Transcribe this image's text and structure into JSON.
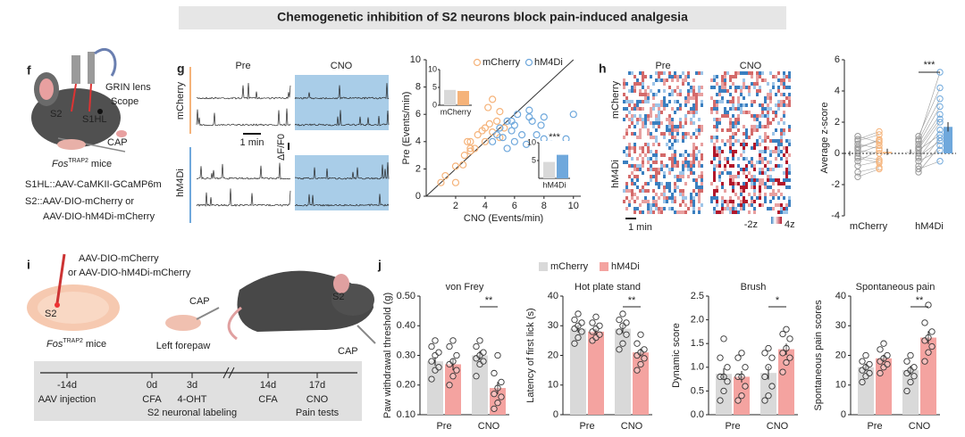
{
  "title": "Chemogenetic inhibition of S2 neurons block pain-induced analgesia",
  "panel_labels": [
    "f",
    "g",
    "h",
    "i",
    "j"
  ],
  "panel_f": {
    "grin_lens": "GRIN lens",
    "scope": "Scope",
    "s2": "S2",
    "s1hl": "S1HL",
    "cap": "CAP",
    "mice": {
      "gene": "Fos",
      "superscript": "TRAP2",
      "suffix": "mice"
    },
    "lines": [
      "S1HL::AAV-CaMKII-GCaMP6m",
      "S2::AAV-DIO-mCherry or",
      "AAV-DIO-hM4Di-mCherry"
    ]
  },
  "panel_g_traces": {
    "conditions": [
      "Pre",
      "CNO"
    ],
    "groups": [
      "mCherry",
      "hM4Di"
    ],
    "time_scale": "1 min",
    "amplitude_scale": "ΔF/F0"
  },
  "panel_h_heatmap": {
    "conditions": [
      "Pre",
      "CNO"
    ],
    "groups": [
      "mCherry",
      "hM4Di"
    ],
    "time_scale": "1 min",
    "color_scale": [
      "-2z",
      "4z"
    ]
  },
  "panel_i": {
    "virus": [
      "AAV-DIO-mCherry",
      "or AAV-DIO-hM4Di-mCherry"
    ],
    "s2": "S2",
    "cap": "CAP",
    "forepaw": "Left forepaw",
    "mice": {
      "gene": "Fos",
      "superscript": "TRAP2",
      "suffix": "mice"
    },
    "timeline": [
      {
        "day": "-14d",
        "events": [
          "AAV injection"
        ]
      },
      {
        "day": "0d",
        "events": [
          "CFA"
        ]
      },
      {
        "day": "3d",
        "events": [
          "4-OHT"
        ]
      },
      {
        "day": "14d",
        "events": [
          "CFA"
        ]
      },
      {
        "day": "17d",
        "events": [
          "CNO",
          "Pain tests"
        ]
      }
    ],
    "labeling_note": "S2 neuronal labeling"
  },
  "chart_data": [
    {
      "type": "scatter",
      "xlabel": "CNO (Events/min)",
      "ylabel": "Pre (Events/min)",
      "xlim": [
        0,
        10.5
      ],
      "ylim": [
        0,
        10
      ],
      "xticks": [
        2,
        4,
        6,
        8,
        10
      ],
      "yticks": [
        0,
        2,
        4,
        6,
        8,
        10
      ],
      "identity_line": true,
      "series": [
        {
          "name": "mCherry",
          "color": "#f5b37a",
          "x": [
            1,
            1.3,
            2,
            2,
            2.5,
            2.6,
            2.8,
            3,
            3,
            3.3,
            3.5,
            3.8,
            4,
            4,
            4.2,
            4.3,
            4.5,
            4.5,
            4.8,
            5,
            5,
            5.3,
            3
          ],
          "y": [
            1,
            1.5,
            2.2,
            1,
            2.3,
            3,
            4,
            3.3,
            4,
            3.5,
            4.5,
            4.8,
            4,
            5,
            6.5,
            5.3,
            4.7,
            7.1,
            5.5,
            4.3,
            6.2,
            5,
            3.5
          ]
        },
        {
          "name": "hM4Di",
          "color": "#6fa8dc",
          "x": [
            4.5,
            4.8,
            5,
            5.2,
            5.5,
            5.5,
            5.8,
            5.8,
            6,
            6,
            6.2,
            6.5,
            6.8,
            7,
            7,
            7.2,
            7.5,
            7.8,
            8,
            8,
            8.5,
            9.5,
            10
          ],
          "y": [
            4,
            4.5,
            5,
            4.3,
            5.5,
            3.5,
            4.8,
            5.5,
            4,
            5.2,
            6,
            4.5,
            3.8,
            5.8,
            6.3,
            5.5,
            4.5,
            5.2,
            4.2,
            5.8,
            3.8,
            4.2,
            6
          ]
        }
      ]
    },
    {
      "type": "inset-bar",
      "label": "mCherry",
      "ylim": [
        0,
        10
      ],
      "yticks": [
        0,
        5,
        10
      ],
      "values": [
        4.3,
        4.0
      ],
      "colors": [
        "#d9d9d9",
        "#f5b37a"
      ]
    },
    {
      "type": "inset-bar",
      "label": "hM4Di",
      "ylim": [
        0,
        10
      ],
      "yticks": [
        5,
        10
      ],
      "values": [
        4.6,
        6.6
      ],
      "colors": [
        "#d9d9d9",
        "#6fa8dc"
      ],
      "significance": "***"
    },
    {
      "type": "paired-bar",
      "ylabel": "Average z-score",
      "categories": [
        "mCherry",
        "hM4Di"
      ],
      "ylim": [
        -4,
        6
      ],
      "yticks": [
        -4,
        -2,
        0,
        2,
        4,
        6
      ],
      "pre_color": "#d9d9d9",
      "post_colors": [
        "#f5b37a",
        "#6fa8dc"
      ],
      "values": [
        [
          0.0,
          0.1
        ],
        [
          0.1,
          1.7
        ]
      ],
      "errors": [
        [
          0.15,
          0.2
        ],
        [
          0.15,
          0.3
        ]
      ],
      "points": [
        [
          [
            -1.2,
            -0.8,
            -0.5,
            -0.3,
            0,
            0.2,
            0.4,
            0.6,
            0.8,
            1.1,
            -0.2,
            0.3,
            -1.5,
            0.9
          ],
          [
            -0.9,
            -0.5,
            0.2,
            -0.6,
            0.5,
            0,
            0.8,
            0.3,
            1.2,
            0.7,
            -0.4,
            0.9,
            -1,
            1.4
          ]
        ],
        [
          [
            -1.2,
            -0.8,
            -0.5,
            -0.3,
            0,
            0.2,
            0.4,
            0.6,
            0.8,
            1.1,
            -0.2,
            0.3,
            -1,
            0.9
          ],
          [
            0.5,
            1,
            0.2,
            1.5,
            2,
            1.2,
            2.5,
            3,
            3.5,
            4.2,
            0.8,
            2.2,
            -0.5,
            5.2
          ]
        ]
      ],
      "significance": "***"
    },
    {
      "type": "grouped-bar-panels",
      "categories": [
        "Pre",
        "CNO"
      ],
      "series": [
        {
          "name": "mCherry",
          "color": "#d9d9d9"
        },
        {
          "name": "hM4Di",
          "color": "#f4a3a0"
        }
      ],
      "subcharts": [
        {
          "title": "von Frey",
          "ylabel": "Paw withdrawal threshold (g)",
          "ylim": [
            0.1,
            0.5
          ],
          "yticks": [
            {
              "value": 0.1,
              "label": "0.10"
            },
            {
              "value": 0.2,
              "label": "0.20"
            },
            {
              "value": 0.3,
              "label": "0.30"
            },
            {
              "value": 0.4,
              "label": "0.40"
            },
            {
              "value": 0.5,
              "label": "0.50"
            }
          ],
          "values": [
            [
              0.28,
              0.3
            ],
            [
              0.27,
              0.19
            ]
          ],
          "errors": [
            [
              0.015,
              0.015
            ],
            [
              0.02,
              0.02
            ]
          ],
          "points": [
            [
              [
                0.22,
                0.25,
                0.26,
                0.28,
                0.3,
                0.31,
                0.33,
                0.35
              ],
              [
                0.23,
                0.27,
                0.28,
                0.29,
                0.3,
                0.31,
                0.33,
                0.35
              ]
            ],
            [
              [
                0.2,
                0.23,
                0.25,
                0.27,
                0.28,
                0.3,
                0.33,
                0.35
              ],
              [
                0.12,
                0.14,
                0.16,
                0.17,
                0.19,
                0.21,
                0.24,
                0.3
              ]
            ]
          ],
          "significance": "**"
        },
        {
          "title": "Hot plate stand",
          "ylabel": "Latency of first lick (s)",
          "ylim": [
            0,
            40
          ],
          "yticks": [
            0,
            10,
            20,
            30,
            40
          ],
          "values": [
            [
              29,
              29
            ],
            [
              28,
              21
            ]
          ],
          "errors": [
            [
              1.2,
              1.5
            ],
            [
              1,
              1.3
            ]
          ],
          "points": [
            [
              [
                24,
                26,
                28,
                29,
                30,
                31,
                32,
                34
              ],
              [
                22,
                24,
                27,
                28,
                30,
                31,
                32,
                34
              ]
            ],
            [
              [
                25,
                26,
                27,
                28,
                29,
                30,
                31,
                33
              ],
              [
                15,
                17,
                19,
                20,
                21,
                22,
                24,
                27
              ]
            ]
          ],
          "significance": "**"
        },
        {
          "title": "Brush",
          "ylabel": "Dynamic score",
          "ylim": [
            0,
            2.5
          ],
          "yticks": [
            {
              "value": 0,
              "label": "0.0"
            },
            0.5,
            {
              "value": 1,
              "label": "1.0"
            },
            1.5,
            {
              "value": 2,
              "label": "2.0"
            },
            2.5
          ],
          "values": [
            [
              0.86,
              0.88
            ],
            [
              0.8,
              1.38
            ]
          ],
          "errors": [
            [
              0.12,
              0.14
            ],
            [
              0.12,
              0.12
            ]
          ],
          "points": [
            [
              [
                0.3,
                0.5,
                0.7,
                0.8,
                0.8,
                1,
                1.2,
                1.6
              ],
              [
                0.3,
                0.4,
                0.6,
                0.8,
                1,
                1.2,
                1.3,
                1.4
              ]
            ],
            [
              [
                0.3,
                0.4,
                0.6,
                0.8,
                0.8,
                1,
                1.2,
                1.3
              ],
              [
                0.9,
                1.1,
                1.2,
                1.3,
                1.4,
                1.6,
                1.7,
                1.8
              ]
            ]
          ],
          "significance": "*"
        },
        {
          "title": "Spontaneous pain",
          "ylabel": "Spontaneous pain scores",
          "ylim": [
            0,
            40
          ],
          "yticks": [
            0,
            10,
            20,
            30,
            40
          ],
          "values": [
            [
              16,
              15
            ],
            [
              19,
              26
            ]
          ],
          "errors": [
            [
              1.2,
              1.5
            ],
            [
              1.2,
              2.2
            ]
          ],
          "points": [
            [
              [
                11,
                13,
                14,
                15,
                16,
                17,
                18,
                20
              ],
              [
                8,
                11,
                13,
                14,
                15,
                16,
                18,
                20
              ]
            ],
            [
              [
                14,
                16,
                17,
                18,
                19,
                20,
                22,
                24
              ],
              [
                18,
                21,
                23,
                25,
                26,
                28,
                31,
                37
              ]
            ]
          ],
          "significance": "**"
        }
      ]
    }
  ]
}
